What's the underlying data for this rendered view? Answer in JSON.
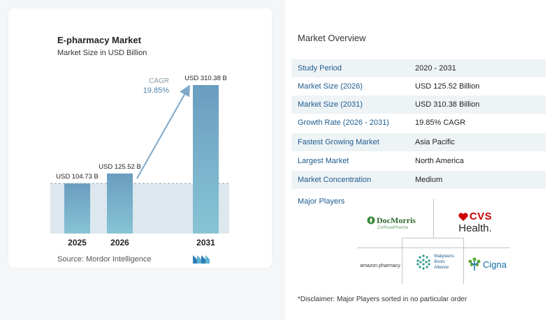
{
  "chart_data": {
    "type": "bar",
    "title": "E-pharmacy Market",
    "subtitle": "Market Size in USD Billion",
    "categories": [
      "2025",
      "2026",
      "2031"
    ],
    "values": [
      104.73,
      125.52,
      310.38
    ],
    "data_labels": [
      "USD 104.73 B",
      "USD 125.52 B",
      "USD 310.38 B"
    ],
    "cagr_label": "CAGR",
    "cagr_value": "19.85%",
    "grid": false,
    "source": "Source:  Mordor Intelligence"
  },
  "overview": {
    "title": "Market Overview",
    "rows": [
      {
        "label": "Study Period",
        "value": "2020 - 2031"
      },
      {
        "label": "Market Size (2026)",
        "value": "USD 125.52 Billion"
      },
      {
        "label": "Market Size (2031)",
        "value": "USD 310.38 Billion"
      },
      {
        "label": "Growth Rate (2026 - 2031)",
        "value": "19.85% CAGR"
      },
      {
        "label": "Fastest Growing Market",
        "value": "Asia Pacific"
      },
      {
        "label": "Largest Market",
        "value": "North America"
      },
      {
        "label": "Market Concentration",
        "value": "Medium"
      }
    ]
  },
  "players": {
    "title": "Major Players",
    "docmorris": {
      "name": "DocMorris",
      "sub": "ZurRosePharma"
    },
    "cvs": {
      "line1": "CVS",
      "line2": "Health."
    },
    "amazon": "amazon pharmacy",
    "wba": {
      "line1": "Walgreens",
      "line2": "Boots",
      "line3": "Alliance"
    },
    "cigna": "Cigna",
    "disclaimer": "*Disclaimer: Major Players sorted in no particular order"
  },
  "colors": {
    "bar_top": "#6a9dc0",
    "bar_bottom": "#87c4d4",
    "shade": "#dde7ee",
    "arrow": "#7fa8c8",
    "label_blue": "#1e5a8c",
    "cvs_red": "#cc0000",
    "docmorris_green": "#3a8a3a",
    "cigna_blue": "#0f6fa6"
  }
}
